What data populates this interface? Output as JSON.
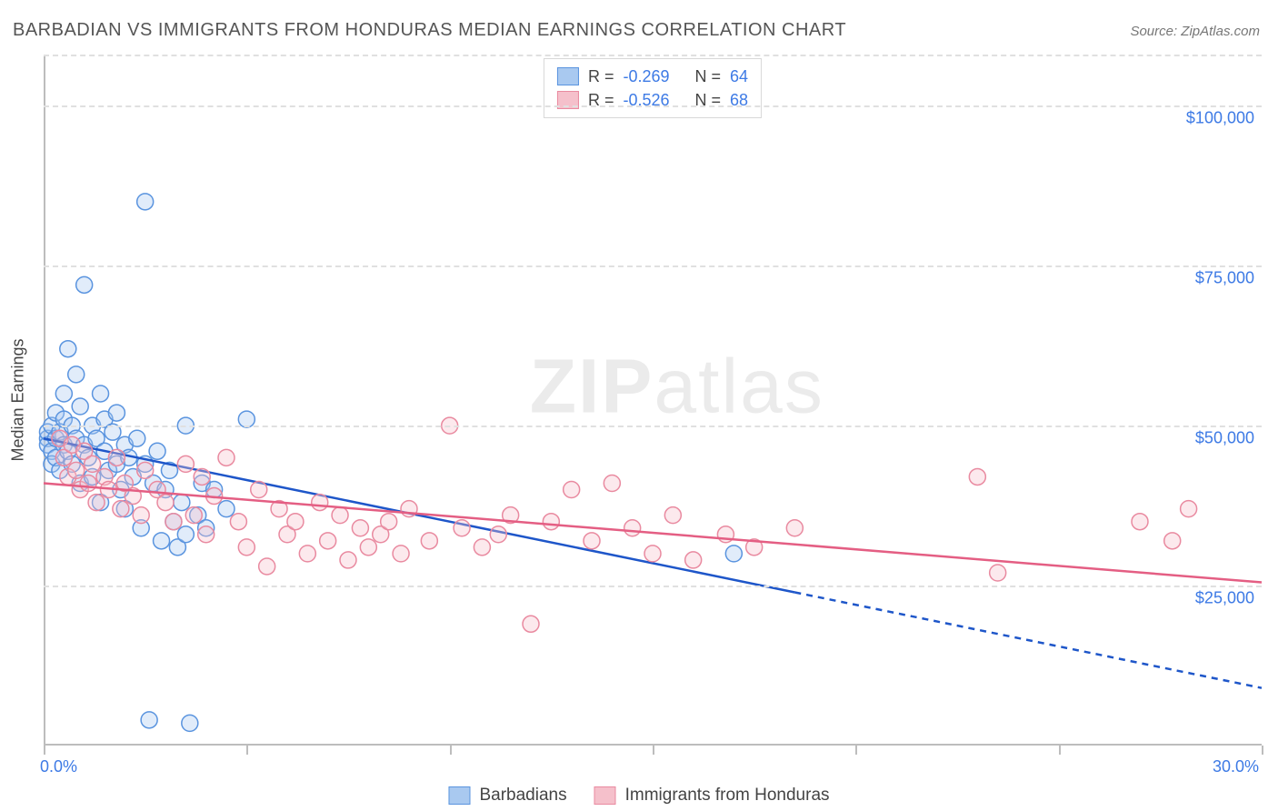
{
  "title": "BARBADIAN VS IMMIGRANTS FROM HONDURAS MEDIAN EARNINGS CORRELATION CHART",
  "source_label": "Source: ZipAtlas.com",
  "watermark": {
    "bold": "ZIP",
    "rest": "atlas"
  },
  "y_axis_title": "Median Earnings",
  "chart": {
    "type": "scatter",
    "xlim": [
      0,
      30
    ],
    "ylim": [
      0,
      108000
    ],
    "x_ticks": [
      0,
      5,
      10,
      15,
      20,
      25,
      30
    ],
    "x_tick_labels_shown": {
      "0": "0.0%",
      "30": "30.0%"
    },
    "y_gridlines": [
      25000,
      50000,
      75000,
      100000
    ],
    "y_tick_labels": [
      "$25,000",
      "$50,000",
      "$75,000",
      "$100,000"
    ],
    "grid_color": "#e0e0e0",
    "axis_color": "#bdbdbd",
    "background_color": "#ffffff",
    "tick_label_color": "#3d7ae5",
    "label_fontsize": 18,
    "marker_radius": 9,
    "marker_fill_opacity": 0.35,
    "line_width": 2.5,
    "series": [
      {
        "name": "Barbadians",
        "color_fill": "#a9c9f0",
        "color_stroke": "#5a94df",
        "line_color": "#1e56c9",
        "R": "-0.269",
        "N": "64",
        "trend": {
          "x1": 0,
          "y1": 48000,
          "x2": 30,
          "y2": 9000,
          "solid_until_x": 18.5
        },
        "points": [
          [
            0.1,
            48000
          ],
          [
            0.1,
            47000
          ],
          [
            0.1,
            49000
          ],
          [
            0.2,
            46000
          ],
          [
            0.2,
            50000
          ],
          [
            0.2,
            44000
          ],
          [
            0.3,
            48000
          ],
          [
            0.3,
            52000
          ],
          [
            0.3,
            45000
          ],
          [
            0.4,
            49000
          ],
          [
            0.4,
            43000
          ],
          [
            0.5,
            51000
          ],
          [
            0.5,
            47000
          ],
          [
            0.5,
            55000
          ],
          [
            0.6,
            62000
          ],
          [
            0.6,
            46000
          ],
          [
            0.7,
            50000
          ],
          [
            0.7,
            44000
          ],
          [
            0.8,
            48000
          ],
          [
            0.8,
            58000
          ],
          [
            0.9,
            41000
          ],
          [
            0.9,
            53000
          ],
          [
            1.0,
            47000
          ],
          [
            1.0,
            72000
          ],
          [
            1.1,
            45000
          ],
          [
            1.2,
            50000
          ],
          [
            1.2,
            42000
          ],
          [
            1.3,
            48000
          ],
          [
            1.4,
            55000
          ],
          [
            1.4,
            38000
          ],
          [
            1.5,
            46000
          ],
          [
            1.5,
            51000
          ],
          [
            1.6,
            43000
          ],
          [
            1.7,
            49000
          ],
          [
            1.8,
            44000
          ],
          [
            1.8,
            52000
          ],
          [
            1.9,
            40000
          ],
          [
            2.0,
            47000
          ],
          [
            2.0,
            37000
          ],
          [
            2.1,
            45000
          ],
          [
            2.2,
            42000
          ],
          [
            2.3,
            48000
          ],
          [
            2.4,
            34000
          ],
          [
            2.5,
            44000
          ],
          [
            2.5,
            85000
          ],
          [
            2.6,
            4000
          ],
          [
            2.7,
            41000
          ],
          [
            2.8,
            46000
          ],
          [
            2.9,
            32000
          ],
          [
            3.0,
            40000
          ],
          [
            3.1,
            43000
          ],
          [
            3.2,
            35000
          ],
          [
            3.3,
            31000
          ],
          [
            3.4,
            38000
          ],
          [
            3.5,
            33000
          ],
          [
            3.5,
            50000
          ],
          [
            3.6,
            3500
          ],
          [
            3.8,
            36000
          ],
          [
            3.9,
            41000
          ],
          [
            4.0,
            34000
          ],
          [
            4.2,
            40000
          ],
          [
            4.5,
            37000
          ],
          [
            5.0,
            51000
          ],
          [
            17.0,
            30000
          ]
        ]
      },
      {
        "name": "Immigrants from Honduras",
        "color_fill": "#f5c0cb",
        "color_stroke": "#e98aa0",
        "line_color": "#e45e83",
        "R": "-0.526",
        "N": "68",
        "trend": {
          "x1": 0,
          "y1": 41000,
          "x2": 30,
          "y2": 25500,
          "solid_until_x": 30
        },
        "points": [
          [
            0.4,
            48000
          ],
          [
            0.5,
            45000
          ],
          [
            0.6,
            42000
          ],
          [
            0.7,
            47000
          ],
          [
            0.8,
            43000
          ],
          [
            0.9,
            40000
          ],
          [
            1.0,
            46000
          ],
          [
            1.1,
            41000
          ],
          [
            1.2,
            44000
          ],
          [
            1.3,
            38000
          ],
          [
            1.5,
            42000
          ],
          [
            1.6,
            40000
          ],
          [
            1.8,
            45000
          ],
          [
            1.9,
            37000
          ],
          [
            2.0,
            41000
          ],
          [
            2.2,
            39000
          ],
          [
            2.4,
            36000
          ],
          [
            2.5,
            43000
          ],
          [
            2.8,
            40000
          ],
          [
            3.0,
            38000
          ],
          [
            3.2,
            35000
          ],
          [
            3.5,
            44000
          ],
          [
            3.7,
            36000
          ],
          [
            3.9,
            42000
          ],
          [
            4.0,
            33000
          ],
          [
            4.2,
            39000
          ],
          [
            4.5,
            45000
          ],
          [
            4.8,
            35000
          ],
          [
            5.0,
            31000
          ],
          [
            5.3,
            40000
          ],
          [
            5.5,
            28000
          ],
          [
            5.8,
            37000
          ],
          [
            6.0,
            33000
          ],
          [
            6.2,
            35000
          ],
          [
            6.5,
            30000
          ],
          [
            6.8,
            38000
          ],
          [
            7.0,
            32000
          ],
          [
            7.3,
            36000
          ],
          [
            7.5,
            29000
          ],
          [
            7.8,
            34000
          ],
          [
            8.0,
            31000
          ],
          [
            8.3,
            33000
          ],
          [
            8.5,
            35000
          ],
          [
            8.8,
            30000
          ],
          [
            9.0,
            37000
          ],
          [
            9.5,
            32000
          ],
          [
            10.0,
            50000
          ],
          [
            10.3,
            34000
          ],
          [
            10.8,
            31000
          ],
          [
            11.2,
            33000
          ],
          [
            11.5,
            36000
          ],
          [
            12.0,
            19000
          ],
          [
            12.5,
            35000
          ],
          [
            13.0,
            40000
          ],
          [
            13.5,
            32000
          ],
          [
            14.0,
            41000
          ],
          [
            14.5,
            34000
          ],
          [
            15.0,
            30000
          ],
          [
            15.5,
            36000
          ],
          [
            16.0,
            29000
          ],
          [
            16.8,
            33000
          ],
          [
            17.5,
            31000
          ],
          [
            18.5,
            34000
          ],
          [
            23.0,
            42000
          ],
          [
            23.5,
            27000
          ],
          [
            27.0,
            35000
          ],
          [
            27.8,
            32000
          ],
          [
            28.2,
            37000
          ]
        ]
      }
    ]
  },
  "legend_bottom": [
    {
      "label": "Barbadians",
      "fill": "#a9c9f0",
      "stroke": "#5a94df"
    },
    {
      "label": "Immigrants from Honduras",
      "fill": "#f5c0cb",
      "stroke": "#e98aa0"
    }
  ]
}
